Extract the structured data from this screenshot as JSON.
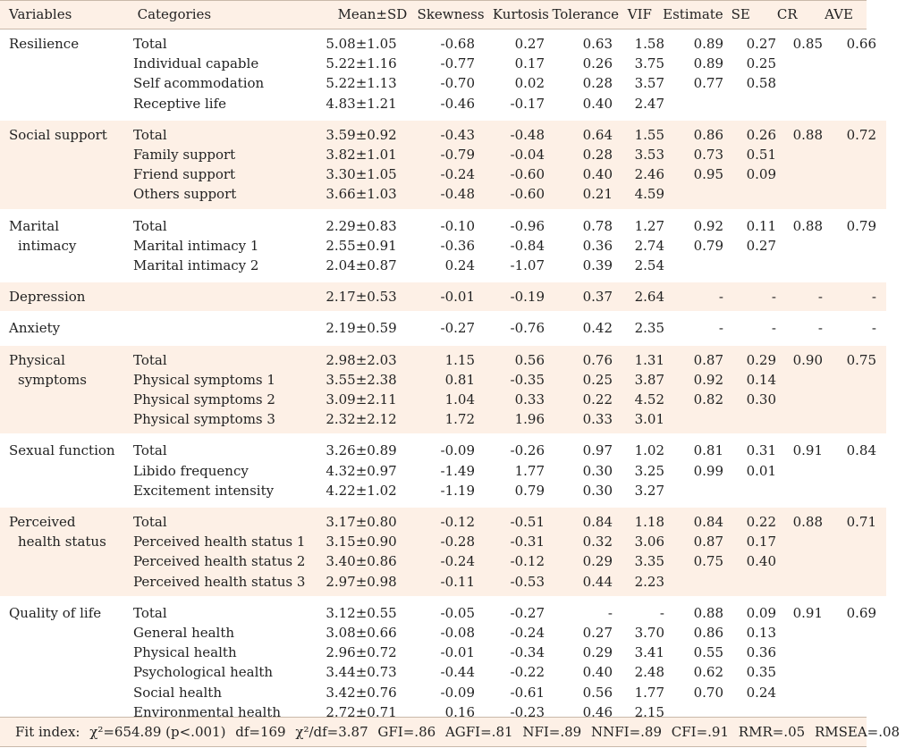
{
  "headers": {
    "variables": "Variables",
    "categories": "Categories",
    "mean_sd": "Mean±SD",
    "skewness": "Skewness",
    "kurtosis": "Kurtosis",
    "tolerance": "Tolerance",
    "vif": "VIF",
    "estimate": "Estimate",
    "se": "SE",
    "cr": "CR",
    "ave": "AVE"
  },
  "groups": [
    {
      "variable_line1": "Resilience",
      "variable_line2": "",
      "rows": [
        {
          "category": "Total",
          "mean_sd": "5.08±1.05",
          "skewness": "-0.68",
          "kurtosis": "0.27",
          "tolerance": "0.63",
          "vif": "1.58",
          "estimate": "0.89",
          "se": "0.27",
          "cr": "0.85",
          "ave": "0.66"
        },
        {
          "category": "Individual capable",
          "mean_sd": "5.22±1.16",
          "skewness": "-0.77",
          "kurtosis": "0.17",
          "tolerance": "0.26",
          "vif": "3.75",
          "estimate": "0.89",
          "se": "0.25",
          "cr": "",
          "ave": ""
        },
        {
          "category": "Self acommodation",
          "mean_sd": "5.22±1.13",
          "skewness": "-0.70",
          "kurtosis": "0.02",
          "tolerance": "0.28",
          "vif": "3.57",
          "estimate": "0.77",
          "se": "0.58",
          "cr": "",
          "ave": ""
        },
        {
          "category": "Receptive life",
          "mean_sd": "4.83±1.21",
          "skewness": "-0.46",
          "kurtosis": "-0.17",
          "tolerance": "0.40",
          "vif": "2.47",
          "estimate": "",
          "se": "",
          "cr": "",
          "ave": ""
        }
      ]
    },
    {
      "variable_line1": "Social support",
      "variable_line2": "",
      "rows": [
        {
          "category": "Total",
          "mean_sd": "3.59±0.92",
          "skewness": "-0.43",
          "kurtosis": "-0.48",
          "tolerance": "0.64",
          "vif": "1.55",
          "estimate": "0.86",
          "se": "0.26",
          "cr": "0.88",
          "ave": "0.72"
        },
        {
          "category": "Family support",
          "mean_sd": "3.82±1.01",
          "skewness": "-0.79",
          "kurtosis": "-0.04",
          "tolerance": "0.28",
          "vif": "3.53",
          "estimate": "0.73",
          "se": "0.51",
          "cr": "",
          "ave": ""
        },
        {
          "category": "Friend support",
          "mean_sd": "3.30±1.05",
          "skewness": "-0.24",
          "kurtosis": "-0.60",
          "tolerance": "0.40",
          "vif": "2.46",
          "estimate": "0.95",
          "se": "0.09",
          "cr": "",
          "ave": ""
        },
        {
          "category": "Others support",
          "mean_sd": "3.66±1.03",
          "skewness": "-0.48",
          "kurtosis": "-0.60",
          "tolerance": "0.21",
          "vif": "4.59",
          "estimate": "",
          "se": "",
          "cr": "",
          "ave": ""
        }
      ]
    },
    {
      "variable_line1": "Marital",
      "variable_line2": "intimacy",
      "rows": [
        {
          "category": "Total",
          "mean_sd": "2.29±0.83",
          "skewness": "-0.10",
          "kurtosis": "-0.96",
          "tolerance": "0.78",
          "vif": "1.27",
          "estimate": "0.92",
          "se": "0.11",
          "cr": "0.88",
          "ave": "0.79"
        },
        {
          "category": "Marital intimacy 1",
          "mean_sd": "2.55±0.91",
          "skewness": "-0.36",
          "kurtosis": "-0.84",
          "tolerance": "0.36",
          "vif": "2.74",
          "estimate": "0.79",
          "se": "0.27",
          "cr": "",
          "ave": ""
        },
        {
          "category": "Marital intimacy 2",
          "mean_sd": "2.04±0.87",
          "skewness": "0.24",
          "kurtosis": "-1.07",
          "tolerance": "0.39",
          "vif": "2.54",
          "estimate": "",
          "se": "",
          "cr": "",
          "ave": ""
        }
      ]
    },
    {
      "variable_line1": "Depression",
      "variable_line2": "",
      "rows": [
        {
          "category": "",
          "mean_sd": "2.17±0.53",
          "skewness": "-0.01",
          "kurtosis": "-0.19",
          "tolerance": "0.37",
          "vif": "2.64",
          "estimate": "-",
          "se": "-",
          "cr": "-",
          "ave": "-"
        }
      ]
    },
    {
      "variable_line1": "Anxiety",
      "variable_line2": "",
      "rows": [
        {
          "category": "",
          "mean_sd": "2.19±0.59",
          "skewness": "-0.27",
          "kurtosis": "-0.76",
          "tolerance": "0.42",
          "vif": "2.35",
          "estimate": "-",
          "se": "-",
          "cr": "-",
          "ave": "-"
        }
      ]
    },
    {
      "variable_line1": "Physical",
      "variable_line2": "symptoms",
      "rows": [
        {
          "category": "Total",
          "mean_sd": "2.98±2.03",
          "skewness": "1.15",
          "kurtosis": "0.56",
          "tolerance": "0.76",
          "vif": "1.31",
          "estimate": "0.87",
          "se": "0.29",
          "cr": "0.90",
          "ave": "0.75"
        },
        {
          "category": "Physical symptoms 1",
          "mean_sd": "3.55±2.38",
          "skewness": "0.81",
          "kurtosis": "-0.35",
          "tolerance": "0.25",
          "vif": "3.87",
          "estimate": "0.92",
          "se": "0.14",
          "cr": "",
          "ave": ""
        },
        {
          "category": "Physical symptoms 2",
          "mean_sd": "3.09±2.11",
          "skewness": "1.04",
          "kurtosis": "0.33",
          "tolerance": "0.22",
          "vif": "4.52",
          "estimate": "0.82",
          "se": "0.30",
          "cr": "",
          "ave": ""
        },
        {
          "category": "Physical symptoms 3",
          "mean_sd": "2.32±2.12",
          "skewness": "1.72",
          "kurtosis": "1.96",
          "tolerance": "0.33",
          "vif": "3.01",
          "estimate": "",
          "se": "",
          "cr": "",
          "ave": ""
        }
      ]
    },
    {
      "variable_line1": "Sexual function",
      "variable_line2": "",
      "rows": [
        {
          "category": "Total",
          "mean_sd": "3.26±0.89",
          "skewness": "-0.09",
          "kurtosis": "-0.26",
          "tolerance": "0.97",
          "vif": "1.02",
          "estimate": "0.81",
          "se": "0.31",
          "cr": "0.91",
          "ave": "0.84"
        },
        {
          "category": "Libido frequency",
          "mean_sd": "4.32±0.97",
          "skewness": "-1.49",
          "kurtosis": "1.77",
          "tolerance": "0.30",
          "vif": "3.25",
          "estimate": "0.99",
          "se": "0.01",
          "cr": "",
          "ave": ""
        },
        {
          "category": "Excitement intensity",
          "mean_sd": "4.22±1.02",
          "skewness": "-1.19",
          "kurtosis": "0.79",
          "tolerance": "0.30",
          "vif": "3.27",
          "estimate": "",
          "se": "",
          "cr": "",
          "ave": ""
        }
      ]
    },
    {
      "variable_line1": "Perceived",
      "variable_line2": "health status",
      "rows": [
        {
          "category": "Total",
          "mean_sd": "3.17±0.80",
          "skewness": "-0.12",
          "kurtosis": "-0.51",
          "tolerance": "0.84",
          "vif": "1.18",
          "estimate": "0.84",
          "se": "0.22",
          "cr": "0.88",
          "ave": "0.71"
        },
        {
          "category": "Perceived health status 1",
          "mean_sd": "3.15±0.90",
          "skewness": "-0.28",
          "kurtosis": "-0.31",
          "tolerance": "0.32",
          "vif": "3.06",
          "estimate": "0.87",
          "se": "0.17",
          "cr": "",
          "ave": ""
        },
        {
          "category": "Perceived health status 2",
          "mean_sd": "3.40±0.86",
          "skewness": "-0.24",
          "kurtosis": "-0.12",
          "tolerance": "0.29",
          "vif": "3.35",
          "estimate": "0.75",
          "se": "0.40",
          "cr": "",
          "ave": ""
        },
        {
          "category": "Perceived health status 3",
          "mean_sd": "2.97±0.98",
          "skewness": "-0.11",
          "kurtosis": "-0.53",
          "tolerance": "0.44",
          "vif": "2.23",
          "estimate": "",
          "se": "",
          "cr": "",
          "ave": ""
        }
      ]
    },
    {
      "variable_line1": "Quality of life",
      "variable_line2": "",
      "rows": [
        {
          "category": "Total",
          "mean_sd": "3.12±0.55",
          "skewness": "-0.05",
          "kurtosis": "-0.27",
          "tolerance": "-",
          "vif": "-",
          "estimate": "0.88",
          "se": "0.09",
          "cr": "0.91",
          "ave": "0.69"
        },
        {
          "category": "General health",
          "mean_sd": "3.08±0.66",
          "skewness": "-0.08",
          "kurtosis": "-0.24",
          "tolerance": "0.27",
          "vif": "3.70",
          "estimate": "0.86",
          "se": "0.13",
          "cr": "",
          "ave": ""
        },
        {
          "category": "Physical health",
          "mean_sd": "2.96±0.72",
          "skewness": "-0.01",
          "kurtosis": "-0.34",
          "tolerance": "0.29",
          "vif": "3.41",
          "estimate": "0.55",
          "se": "0.36",
          "cr": "",
          "ave": ""
        },
        {
          "category": "Psychological health",
          "mean_sd": "3.44±0.73",
          "skewness": "-0.44",
          "kurtosis": "-0.22",
          "tolerance": "0.40",
          "vif": "2.48",
          "estimate": "0.62",
          "se": "0.35",
          "cr": "",
          "ave": ""
        },
        {
          "category": "Social health",
          "mean_sd": "3.42±0.76",
          "skewness": "-0.09",
          "kurtosis": "-0.61",
          "tolerance": "0.56",
          "vif": "1.77",
          "estimate": "0.70",
          "se": "0.24",
          "cr": "",
          "ave": ""
        },
        {
          "category": "Environmental health",
          "mean_sd": "2.72±0.71",
          "skewness": "0.16",
          "kurtosis": "-0.23",
          "tolerance": "0.46",
          "vif": "2.15",
          "estimate": "",
          "se": "",
          "cr": "",
          "ave": ""
        }
      ]
    }
  ],
  "fit_index": {
    "label": "Fit index:",
    "chi_square": "χ²=654.89 (p<.001)",
    "df": "df=169",
    "chi_df": "χ²/df=3.87",
    "gfi": "GFI=.86",
    "agfi": "AGFI=.81",
    "nfi": "NFI=.89",
    "nnfi": "NNFI=.89",
    "cfi": "CFI=.91",
    "rmr": "RMR=.05",
    "rmsea": "RMSEA=.08"
  }
}
